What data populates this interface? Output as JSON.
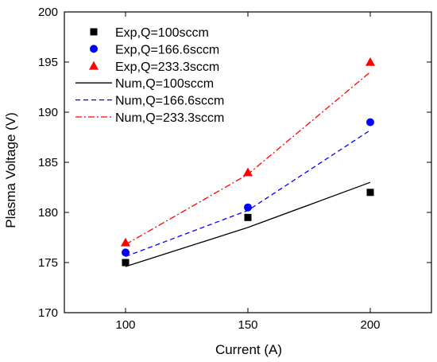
{
  "chart_data": {
    "type": "line",
    "title": "",
    "xlabel": "Current (A)",
    "ylabel": "Plasma Voltage (V)",
    "xlim": [
      75,
      225
    ],
    "ylim": [
      170,
      200
    ],
    "xticks": [
      100,
      150,
      200
    ],
    "yticks": [
      170,
      175,
      180,
      185,
      190,
      195,
      200
    ],
    "grid": false,
    "legend_position": "top-left",
    "series": [
      {
        "name": "Exp,Q=100sccm",
        "kind": "scatter",
        "marker": "square",
        "color": "#000000",
        "x": [
          100,
          150,
          200
        ],
        "y": [
          175.0,
          179.5,
          182.0
        ]
      },
      {
        "name": "Exp,Q=166.6sccm",
        "kind": "scatter",
        "marker": "circle",
        "color": "#0000ff",
        "x": [
          100,
          150,
          200
        ],
        "y": [
          176.0,
          180.5,
          189.0
        ]
      },
      {
        "name": "Exp,Q=233.3sccm",
        "kind": "scatter",
        "marker": "triangle",
        "color": "#ff0000",
        "x": [
          100,
          150,
          200
        ],
        "y": [
          177.0,
          184.0,
          195.0
        ]
      },
      {
        "name": "Num,Q=100sccm",
        "kind": "line",
        "dash": "solid",
        "color": "#000000",
        "x": [
          100,
          150,
          200
        ],
        "y": [
          174.6,
          178.5,
          183.0
        ]
      },
      {
        "name": "Num,Q=166.6sccm",
        "kind": "line",
        "dash": "dash",
        "color": "#0000ff",
        "x": [
          100,
          150,
          200
        ],
        "y": [
          175.6,
          180.2,
          188.2
        ]
      },
      {
        "name": "Num,Q=233.3sccm",
        "kind": "line",
        "dash": "dashdot",
        "color": "#ff0000",
        "x": [
          100,
          150,
          200
        ],
        "y": [
          176.8,
          183.8,
          194.0
        ]
      }
    ]
  }
}
